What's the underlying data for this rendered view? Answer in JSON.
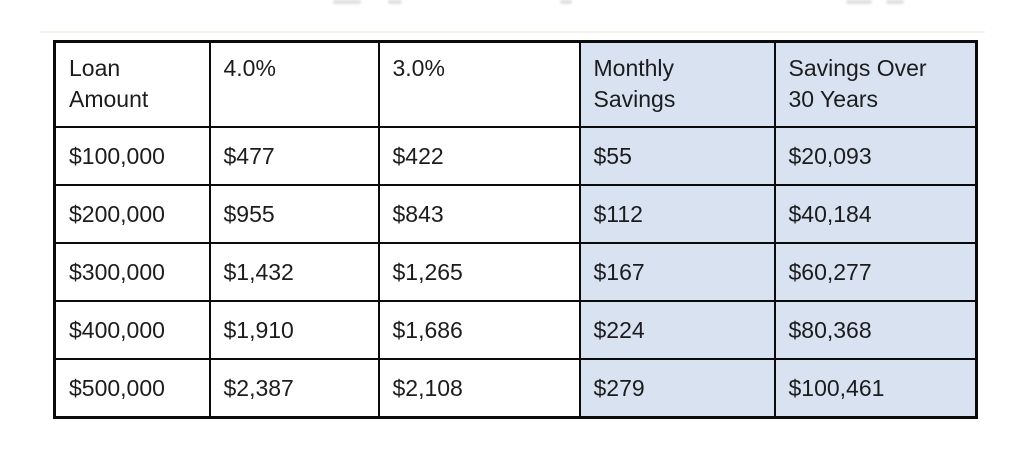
{
  "page": {
    "background": "#ffffff"
  },
  "decor": {
    "cropped_rule_color": "#f8f3e8",
    "remnant_color": "#9a9a9a"
  },
  "table": {
    "accent_fill": "#d9e2f0",
    "border_color": "#0b0b0b",
    "headers": [
      {
        "text": "Loan\nAmount",
        "highlighted": false
      },
      {
        "text": "4.0%",
        "highlighted": false
      },
      {
        "text": "3.0%",
        "highlighted": false
      },
      {
        "text": "Monthly\nSavings",
        "highlighted": true
      },
      {
        "text": "Savings Over\n30 Years",
        "highlighted": true
      }
    ],
    "rows": [
      {
        "cells": [
          "$100,000",
          "$477",
          "$422",
          "$55",
          "$20,093"
        ]
      },
      {
        "cells": [
          "$200,000",
          "$955",
          "$843",
          "$112",
          "$40,184"
        ]
      },
      {
        "cells": [
          "$300,000",
          "$1,432",
          "$1,265",
          "$167",
          "$60,277"
        ]
      },
      {
        "cells": [
          "$400,000",
          "$1,910",
          "$1,686",
          "$224",
          "$80,368"
        ]
      },
      {
        "cells": [
          "$500,000",
          "$2,387",
          "$2,108",
          "$279",
          "$100,461"
        ]
      }
    ]
  }
}
